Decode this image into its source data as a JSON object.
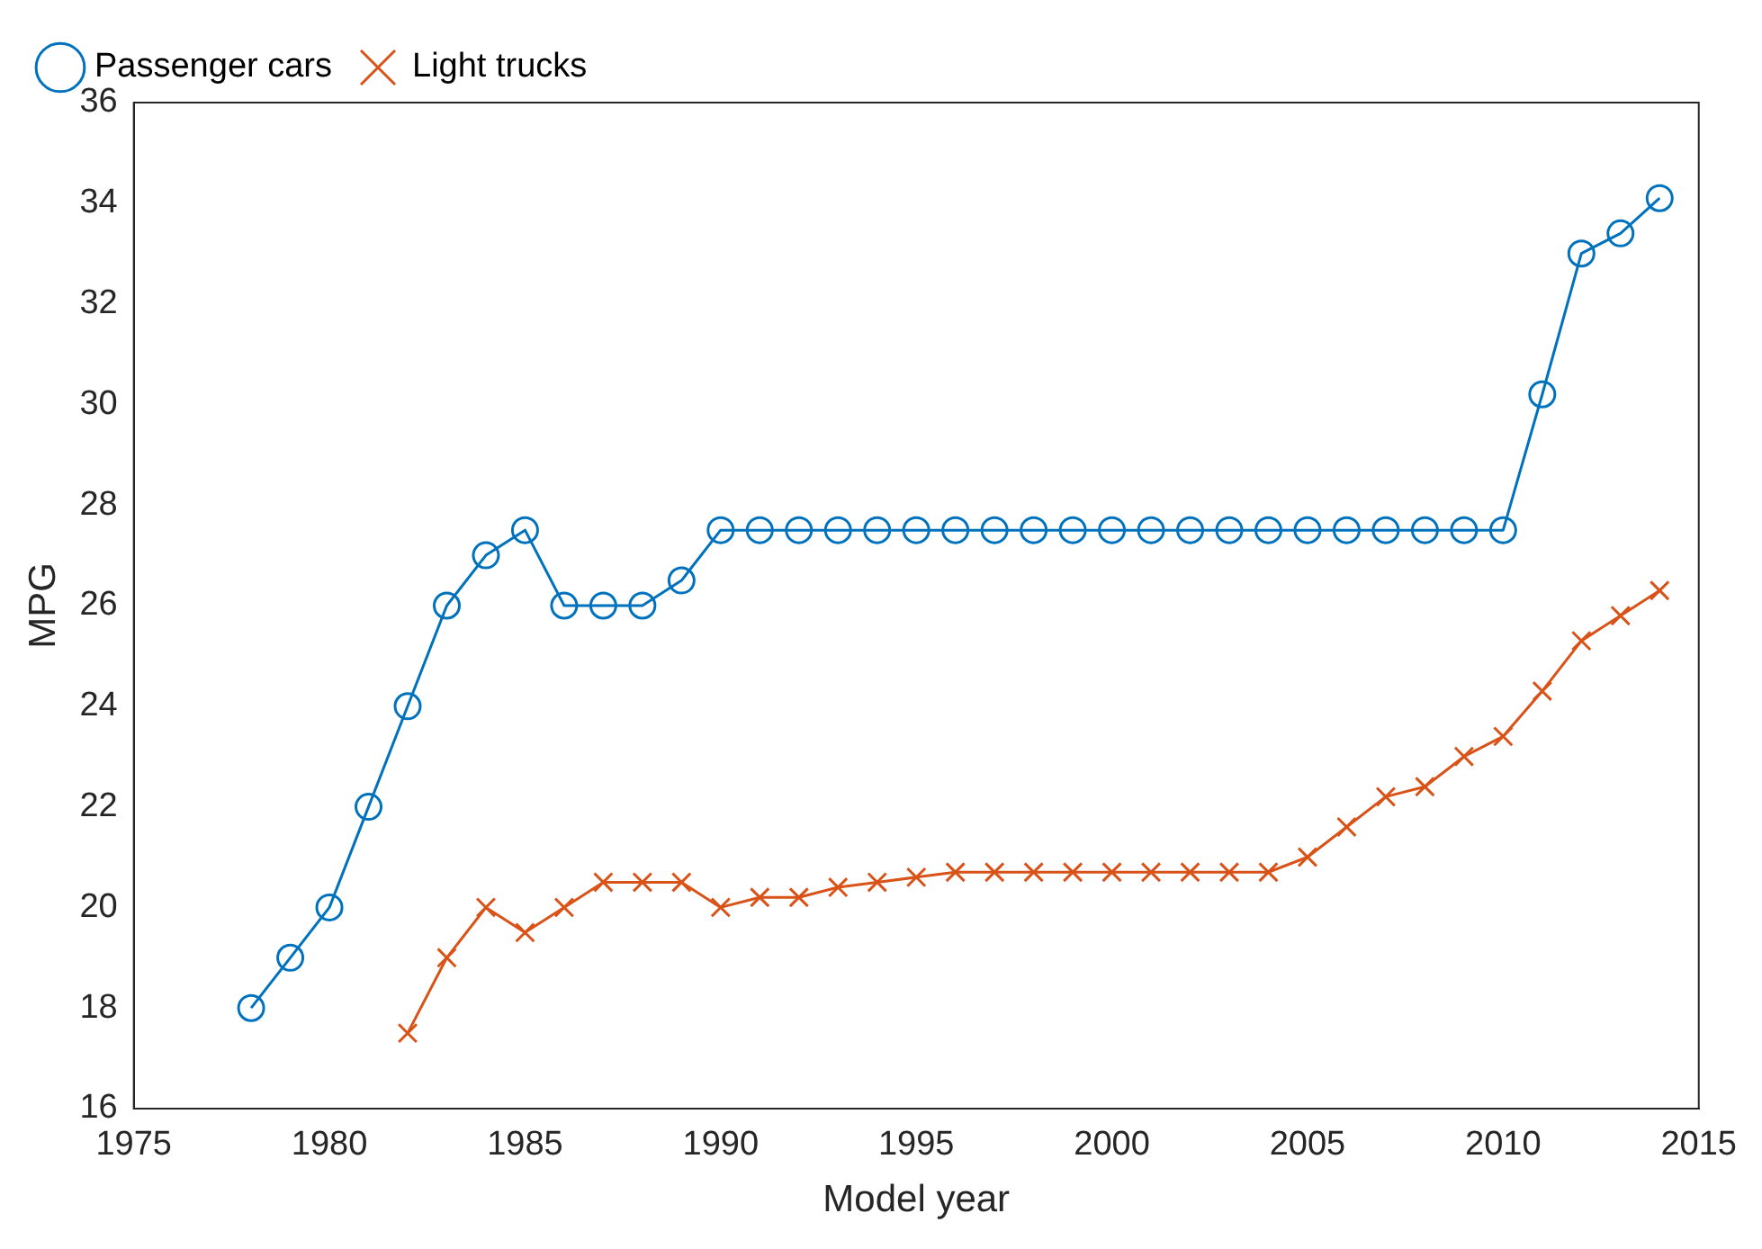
{
  "chart_data": {
    "type": "line",
    "xlabel": "Model year",
    "ylabel": "MPG",
    "xlim": [
      1975,
      2015
    ],
    "xticks": [
      1975,
      1980,
      1985,
      1990,
      1995,
      2000,
      2005,
      2010,
      2015
    ],
    "ylim": [
      16,
      36
    ],
    "yticks": [
      16,
      18,
      20,
      22,
      24,
      26,
      28,
      30,
      32,
      34,
      36
    ],
    "grid": false,
    "legend": "top left",
    "line_style": "solid",
    "series": [
      {
        "name": "Passenger cars",
        "color": "#0072bd",
        "marker": "circle",
        "x": [
          1978,
          1979,
          1980,
          1981,
          1982,
          1983,
          1984,
          1985,
          1986,
          1987,
          1988,
          1989,
          1990,
          1991,
          1992,
          1993,
          1994,
          1995,
          1996,
          1997,
          1998,
          1999,
          2000,
          2001,
          2002,
          2003,
          2004,
          2005,
          2006,
          2007,
          2008,
          2009,
          2010,
          2011,
          2012,
          2013,
          2014
        ],
        "values": [
          18,
          19,
          20,
          22,
          24,
          26,
          27,
          27.5,
          26,
          26,
          26,
          26.5,
          27.5,
          27.5,
          27.5,
          27.5,
          27.5,
          27.5,
          27.5,
          27.5,
          27.5,
          27.5,
          27.5,
          27.5,
          27.5,
          27.5,
          27.5,
          27.5,
          27.5,
          27.5,
          27.5,
          27.5,
          27.5,
          30.2,
          33,
          33.4,
          34.1
        ]
      },
      {
        "name": "Light trucks",
        "color": "#d95319",
        "marker": "cross",
        "x": [
          1982,
          1983,
          1984,
          1985,
          1986,
          1987,
          1988,
          1989,
          1990,
          1991,
          1992,
          1993,
          1994,
          1995,
          1996,
          1997,
          1998,
          1999,
          2000,
          2001,
          2002,
          2003,
          2004,
          2005,
          2006,
          2007,
          2008,
          2009,
          2010,
          2011,
          2012,
          2013,
          2014
        ],
        "values": [
          17.5,
          19,
          20,
          19.5,
          20,
          20.5,
          20.5,
          20.5,
          20,
          20.2,
          20.2,
          20.4,
          20.5,
          20.6,
          20.7,
          20.7,
          20.7,
          20.7,
          20.7,
          20.7,
          20.7,
          20.7,
          20.7,
          21,
          21.6,
          22.2,
          22.4,
          23,
          23.4,
          24.3,
          25.3,
          25.8,
          26.3
        ]
      }
    ]
  }
}
